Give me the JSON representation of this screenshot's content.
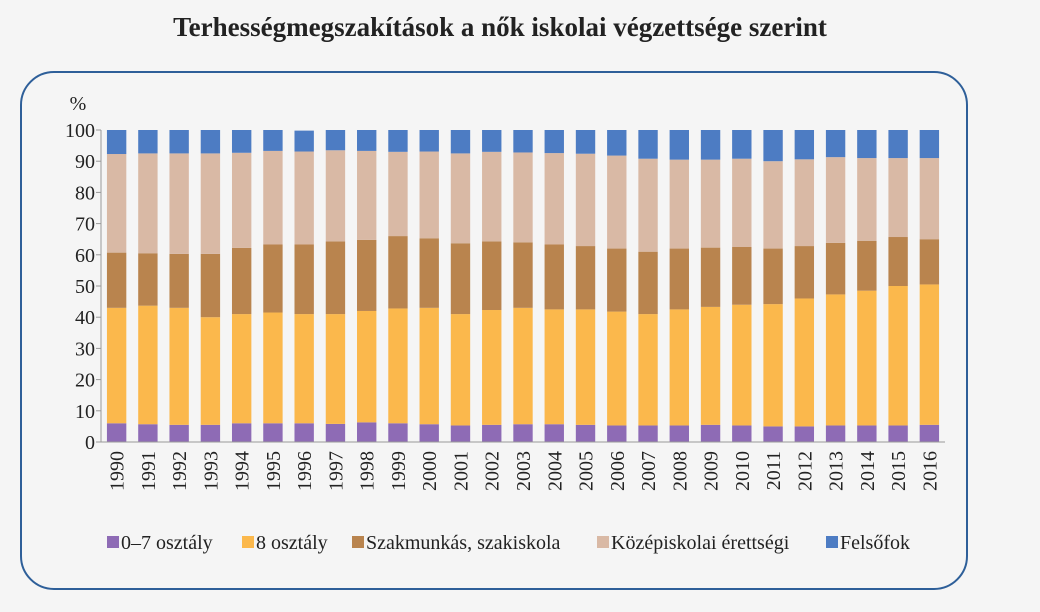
{
  "chart_data": {
    "type": "bar",
    "stacked": true,
    "title": "Terhességmegszakítások a nők iskolai végzettsége szerint",
    "ylabel": "%",
    "ylim": [
      0,
      100
    ],
    "yticks": [
      0,
      10,
      20,
      30,
      40,
      50,
      60,
      70,
      80,
      90,
      100
    ],
    "grid": false,
    "legend_position": "bottom",
    "categories": [
      "1990",
      "1991",
      "1992",
      "1993",
      "1994",
      "1995",
      "1996",
      "1997",
      "1998",
      "1999",
      "2000",
      "2001",
      "2002",
      "2003",
      "2004",
      "2005",
      "2006",
      "2007",
      "2008",
      "2009",
      "2010",
      "2011",
      "2012",
      "2013",
      "2014",
      "2015",
      "2016"
    ],
    "series": [
      {
        "name": "0–7 osztály",
        "color": "#8e6bb5",
        "values": [
          6,
          5.7,
          5.5,
          5.5,
          6,
          6,
          6,
          5.8,
          6.3,
          6,
          5.7,
          5.3,
          5.5,
          5.7,
          5.7,
          5.5,
          5.3,
          5.3,
          5.3,
          5.5,
          5.3,
          5,
          5,
          5.3,
          5.3,
          5.3,
          5.5
        ]
      },
      {
        "name": "8 osztály",
        "color": "#fbb84c",
        "values": [
          37,
          38,
          37.5,
          34.5,
          35,
          35.5,
          35,
          35.2,
          35.7,
          36.8,
          37.3,
          35.7,
          36.8,
          37.3,
          36.8,
          37,
          36.5,
          35.7,
          37.2,
          37.8,
          38.7,
          39.2,
          41,
          42,
          43.2,
          44.7,
          45
        ]
      },
      {
        "name": "Szakmunkás, szakiskola",
        "color": "#b9844e",
        "values": [
          17.7,
          16.8,
          17.3,
          20.3,
          21.2,
          21.8,
          22.3,
          23.3,
          22.8,
          23.2,
          22.3,
          22.7,
          22,
          21,
          20.8,
          20.3,
          20.2,
          20,
          19.5,
          19,
          18.5,
          17.8,
          16.8,
          16.5,
          16,
          15.7,
          14.5
        ]
      },
      {
        "name": "Középiskolai érettségi",
        "color": "#d9b9a5",
        "values": [
          31.6,
          32,
          32.2,
          32.2,
          30.5,
          30,
          29.8,
          29.2,
          28.5,
          27,
          27.8,
          28.8,
          28.7,
          28.8,
          29.3,
          29.6,
          29.8,
          29.8,
          28.5,
          28.2,
          28.3,
          28,
          27.8,
          27.5,
          26.5,
          25.3,
          26
        ]
      },
      {
        "name": "Felsőfok",
        "color": "#4d7cc3",
        "values": [
          7.7,
          7.5,
          7.5,
          7.5,
          7.3,
          6.7,
          6.7,
          6.5,
          6.7,
          7,
          6.9,
          7.5,
          7,
          7.2,
          7.4,
          7.6,
          8.2,
          9.2,
          9.5,
          9.5,
          9.2,
          10,
          9.4,
          8.7,
          9,
          9,
          9
        ]
      }
    ]
  }
}
